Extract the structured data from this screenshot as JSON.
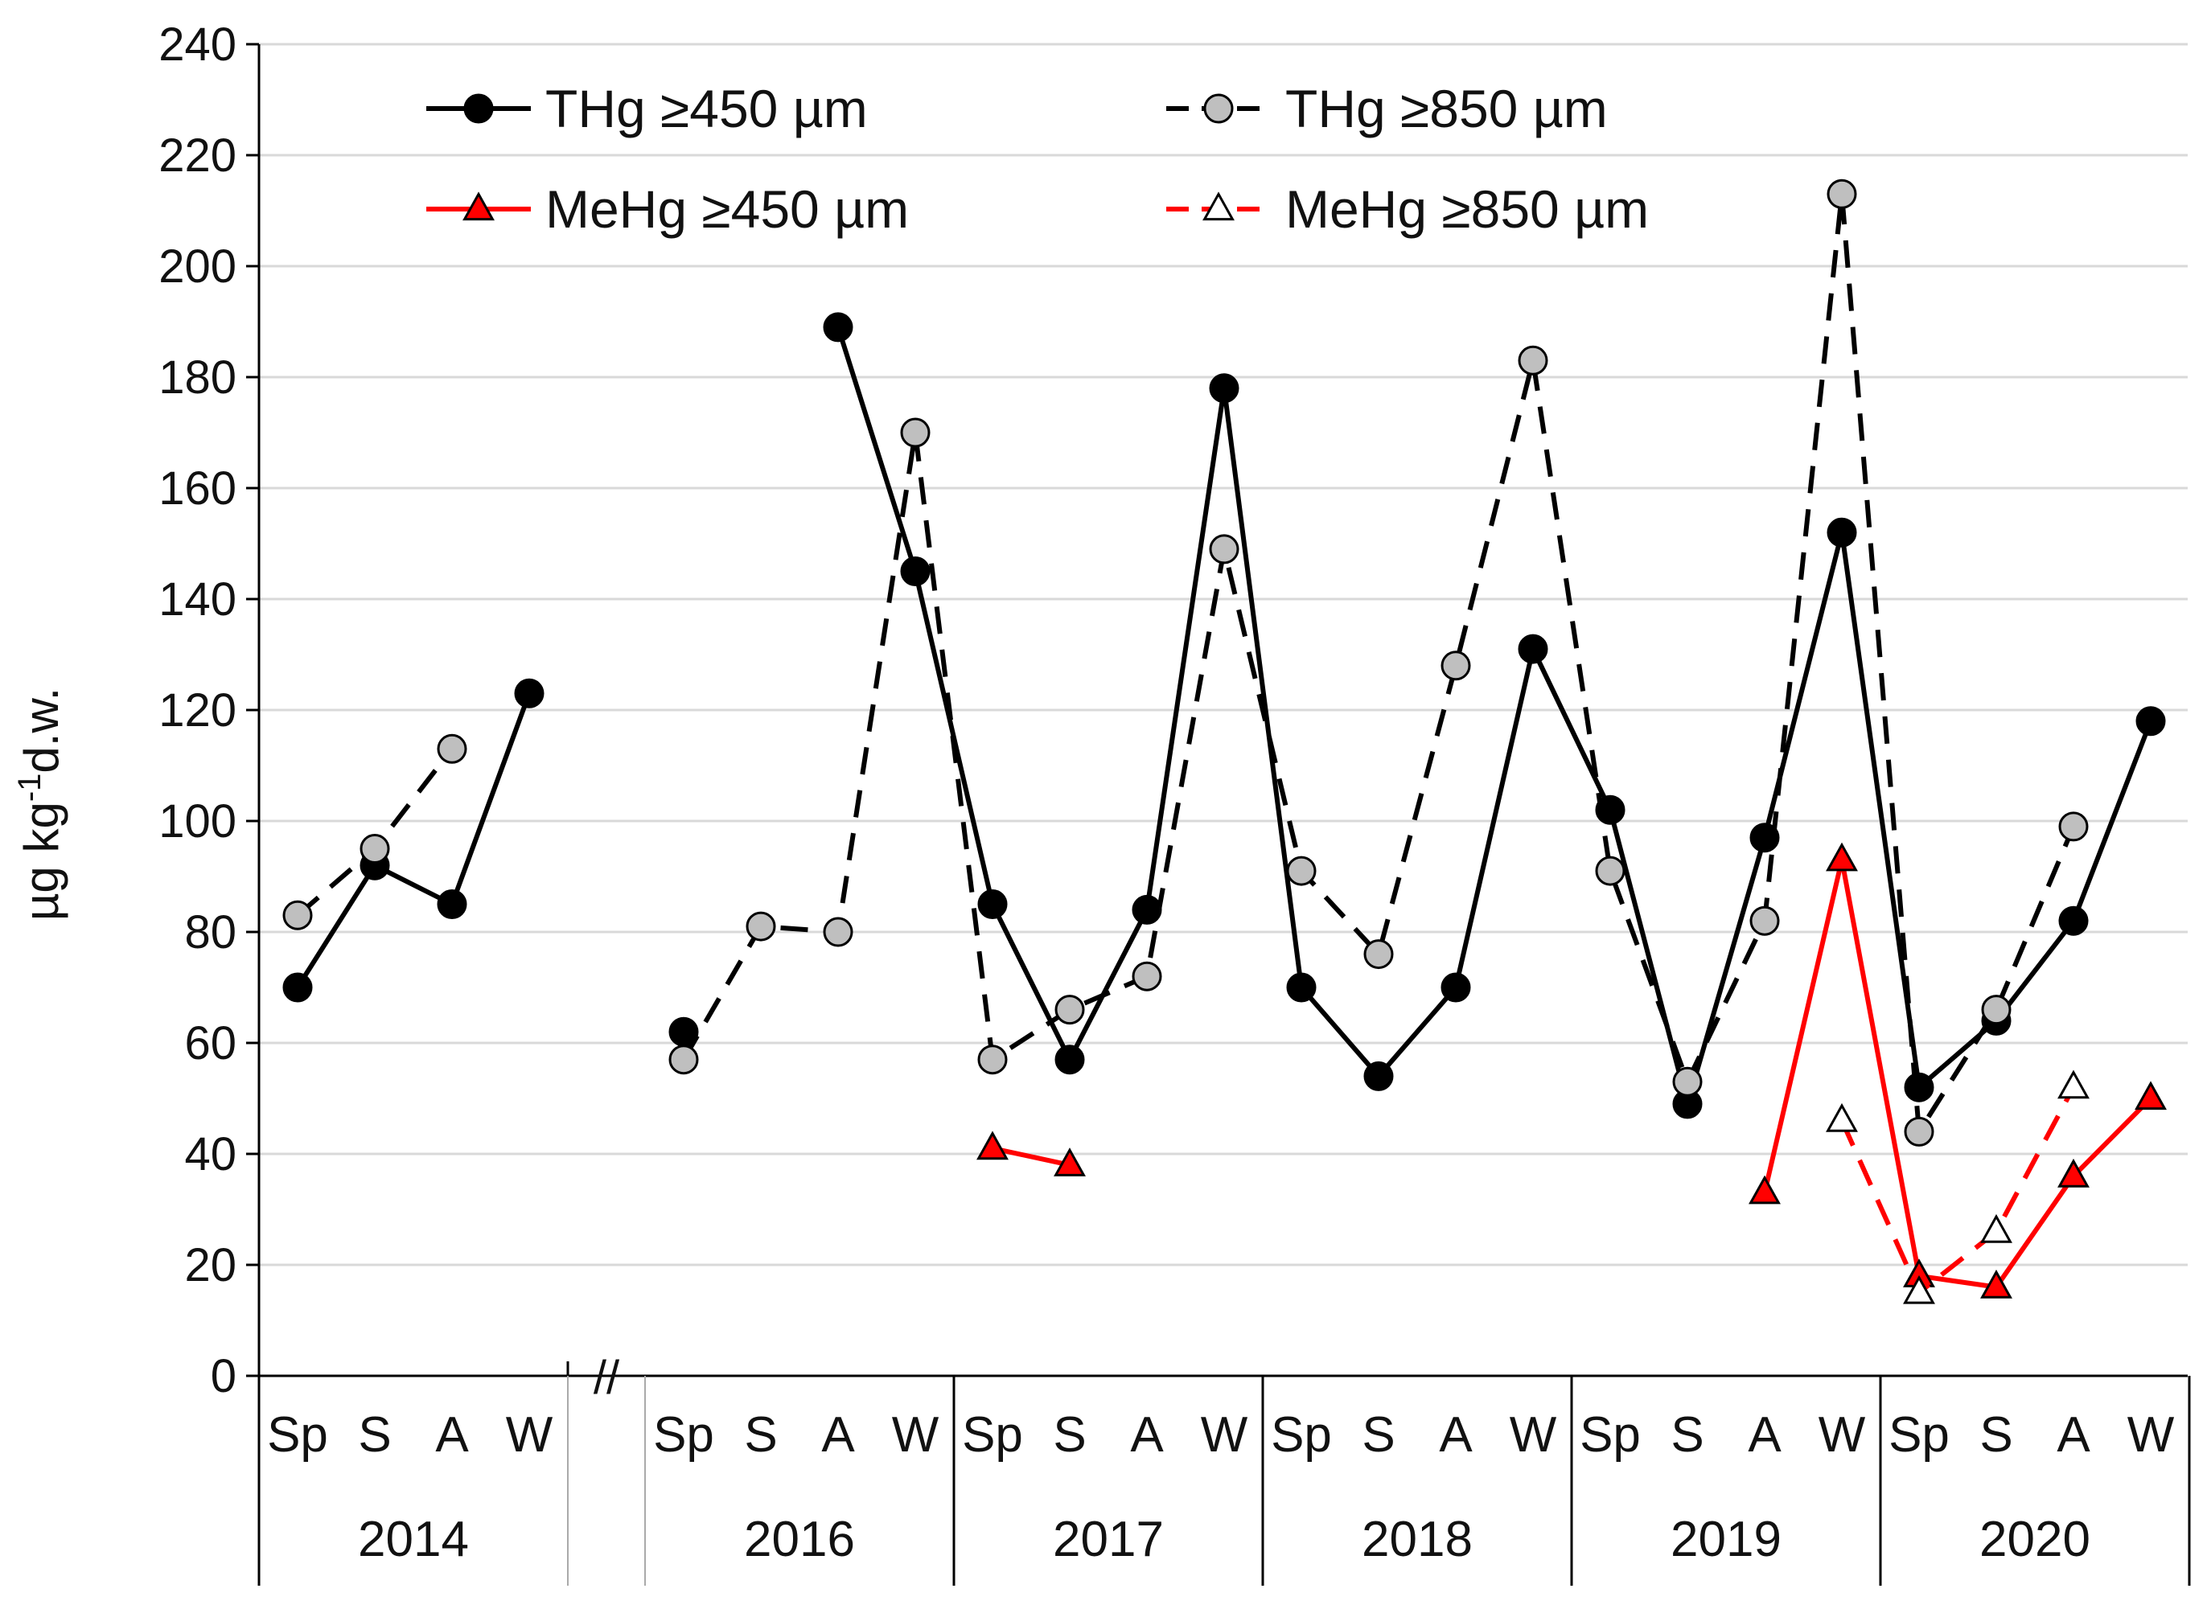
{
  "chart_data": {
    "type": "line",
    "title": "",
    "xlabel": "",
    "ylabel_main": "µg kg",
    "ylabel_sup": "-1",
    "ylabel_tail": "d.w.",
    "ylim": [
      0,
      240
    ],
    "y_ticks": [
      0,
      20,
      40,
      60,
      80,
      100,
      120,
      140,
      160,
      180,
      200,
      220,
      240
    ],
    "grid": true,
    "break_marker": "//",
    "years": [
      {
        "label": "2014",
        "seasons": [
          "Sp",
          "S",
          "A",
          "W"
        ]
      },
      {
        "label": "",
        "seasons": []
      },
      {
        "label": "2016",
        "seasons": [
          "Sp",
          "S",
          "A",
          "W"
        ]
      },
      {
        "label": "2017",
        "seasons": [
          "Sp",
          "S",
          "A",
          "W"
        ]
      },
      {
        "label": "2018",
        "seasons": [
          "Sp",
          "S",
          "A",
          "W"
        ]
      },
      {
        "label": "2019",
        "seasons": [
          "Sp",
          "S",
          "A",
          "W"
        ]
      },
      {
        "label": "2020",
        "seasons": [
          "Sp",
          "S",
          "A",
          "W"
        ]
      }
    ],
    "legend_position": "top",
    "series": [
      {
        "name": "THg ≥450 µm",
        "line_color": "#000000",
        "line_style": "solid",
        "marker": "circle",
        "marker_fill": "#000000",
        "values": [
          [
            70,
            92,
            85,
            123
          ],
          [
            62,
            null,
            189,
            145
          ],
          [
            85,
            57,
            84,
            178
          ],
          [
            70,
            54,
            70,
            131
          ],
          [
            102,
            49,
            97,
            152
          ],
          [
            52,
            64,
            82,
            118
          ]
        ]
      },
      {
        "name": "THg ≥850 µm",
        "line_color": "#000000",
        "line_style": "dashed",
        "marker": "circle",
        "marker_fill": "#bfbfbf",
        "values": [
          [
            83,
            95,
            113,
            null
          ],
          [
            57,
            81,
            80,
            170
          ],
          [
            57,
            66,
            72,
            149
          ],
          [
            91,
            76,
            128,
            183
          ],
          [
            91,
            53,
            82,
            213
          ],
          [
            44,
            66,
            99,
            null
          ]
        ]
      },
      {
        "name": "MeHg ≥450 µm",
        "line_color": "#ff0000",
        "line_style": "solid",
        "marker": "triangle",
        "marker_fill": "#ff0000",
        "values": [
          [
            null,
            null,
            null,
            null
          ],
          [
            null,
            null,
            null,
            null
          ],
          [
            41,
            38,
            null,
            null
          ],
          [
            null,
            null,
            null,
            null
          ],
          [
            null,
            null,
            33,
            93
          ],
          [
            18,
            16,
            36,
            50
          ]
        ]
      },
      {
        "name": "MeHg ≥850 µm",
        "line_color": "#ff0000",
        "line_style": "dashed",
        "marker": "triangle",
        "marker_fill": "#ffffff",
        "values": [
          [
            null,
            null,
            null,
            null
          ],
          [
            null,
            null,
            null,
            null
          ],
          [
            null,
            null,
            null,
            null
          ],
          [
            null,
            null,
            null,
            null
          ],
          [
            null,
            null,
            null,
            46
          ],
          [
            15,
            26,
            52,
            null
          ]
        ]
      }
    ]
  }
}
